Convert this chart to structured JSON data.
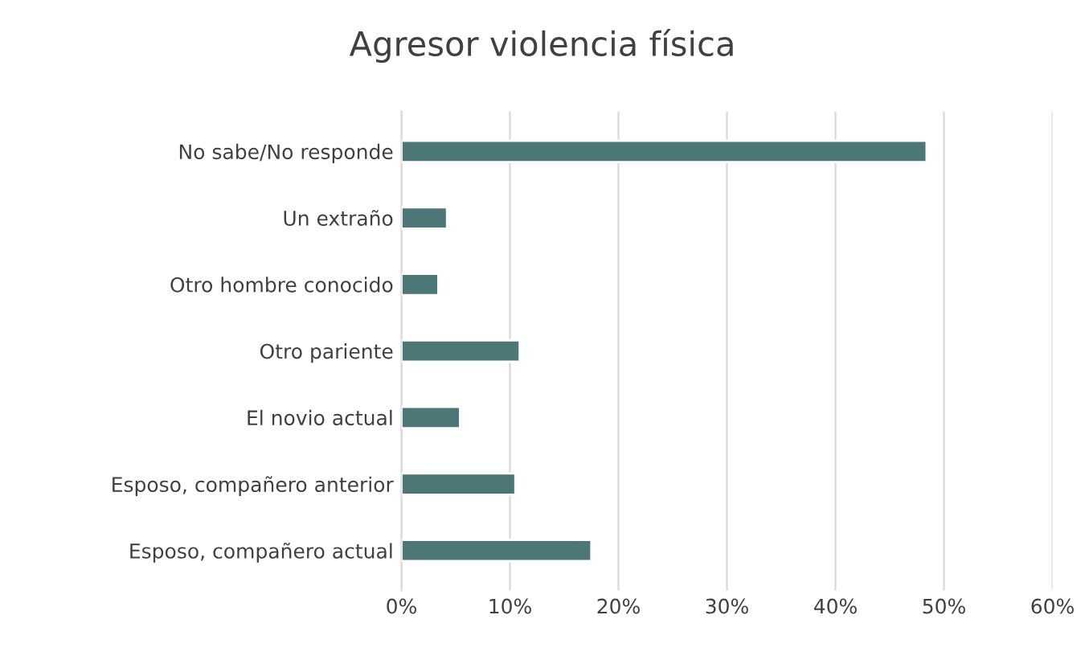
{
  "chart_data": {
    "type": "bar",
    "orientation": "horizontal",
    "title": "Agresor violencia física",
    "categories": [
      "No sabe/No responde",
      "Un extraño",
      "Otro hombre conocido",
      "Otro pariente",
      "El novio actual",
      "Esposo, compañero anterior",
      "Esposo, compañero actual"
    ],
    "values": [
      48.4,
      4.2,
      3.4,
      10.9,
      5.4,
      10.5,
      17.5
    ],
    "color": "#4d7676",
    "xlim": [
      0,
      60
    ],
    "xticks": [
      {
        "value": 0,
        "label": "0%"
      },
      {
        "value": 10,
        "label": "10%"
      },
      {
        "value": 20,
        "label": "20%"
      },
      {
        "value": 30,
        "label": "30%"
      },
      {
        "value": 40,
        "label": "40%"
      },
      {
        "value": 50,
        "label": "50%"
      },
      {
        "value": 60,
        "label": "60%"
      }
    ],
    "grid": "x",
    "legend": false
  }
}
